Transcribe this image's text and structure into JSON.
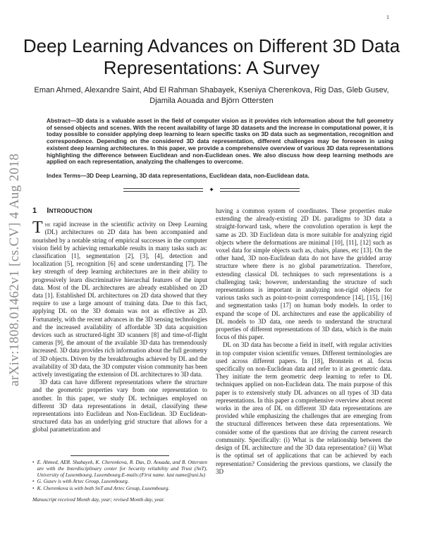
{
  "page": {
    "number": "1",
    "watermark": "arXiv:1808.01462v1  [cs.CV]  4 Aug 2018"
  },
  "title": {
    "line1": "Deep Learning Advances on Different 3D Data",
    "line2": "Representations: A Survey"
  },
  "authors": {
    "line1": "Eman Ahmed, Alexandre Saint, Abd El Rahman Shabayek, Kseniya Cherenkova, Rig Das, Gleb Gusev,",
    "line2": "Djamila Aouada and Björn Ottersten"
  },
  "abstract": {
    "label": "Abstract",
    "body": "—3D data is a valuable asset in the field of computer vision as it provides rich information about the full geometry of sensed objects and scenes. With the recent availability of large 3D datasets and the increase in computational power, it is today possible to consider applying deep learning to learn specific tasks on 3D data such as segmentation, recognition and correspondence. Depending on the considered 3D data representation, different challenges may be foreseen in using existent deep learning architectures. In this paper, we provide a comprehensive overview of various 3D data representations highlighting the difference between Euclidean and non-Euclidean ones. We also discuss how deep learning methods are applied on each representation, analyzing the challenges to overcome."
  },
  "index_terms": {
    "label": "Index Terms",
    "body": "—3D Deep Learning, 3D data representations, Euclidean data, non-Euclidean data."
  },
  "separator": {
    "diamond": "✦"
  },
  "section1": {
    "number": "1",
    "title": "Introduction"
  },
  "left_column": {
    "dropcap": "T",
    "p1_smallcaps": "he",
    "p1": " rapid increase in the scientific activity on Deep Learning (DL) architectures on 2D data has been accompanied and nourished by a notable string of empirical successes in the computer vision field by achieving remarkable results in many tasks such as: classification [1], segmentation [2], [3], [4], detection and localization [5], recognition [6] and scene understanding [7]. The key strength of deep learning architectures are in their ability to progressively learn discriminative hierarchal features of the input data. Most of the DL architectures are already established on 2D data [1]. Established DL architectures on 2D data showed that they require to use a large amount of training data. Due to this fact, applying DL on the 3D domain was not as effective as 2D. Fortunately, with the recent advances in the 3D sensing technologies and the increased availability of affordable 3D data acquisition devices such as structured-light 3D scanners [8] and time-of-flight cameras [9], the amount of the available 3D data has tremendously increased. 3D data provides rich information about the full geometry of 3D objects. Driven by the breakthroughs achieved by DL and the availability of 3D data, the 3D computer vision community has been actively investigating the extension of DL architectures to 3D data.",
    "p2": "3D data can have different representations where the structure and the geometric properties vary from one representation to another. In this paper, we study DL techniques employed on different 3D data representations in detail, classifying these representations into Euclidean and Non-Euclidean. 3D Euclidean-structured data has an underlying grid structure that allows for a global parametrization and"
  },
  "right_column": {
    "p1": "having a common system of coordinates. These properties make extending the already-existing 2D DL paradigms to 3D data a straight-forward task, where the convolution operation is kept the same as 2D. 3D Euclidean data is more suitable for analyzing rigid objects where the deformations are minimal [10], [11], [12] such as voxel data for simple objects such as, chairs, planes, etc [13]. On the other hand, 3D non-Euclidean data do not have the gridded array structure where there is no global parametrization. Therefore, extending classical DL techniques to such representations is a challenging task; however, understanding the structure of such representations is important in analyzing non-rigid objects for various tasks such as point-to-point correspondence [14], [15], [16] and segmentation tasks [17] on human body models. In order to expand the scope of DL architectures and ease the applicability of DL models to 3D data, one needs to understand the structural properties of different representations of 3D data, which is the main focus of this paper.",
    "p2": "DL on 3D data has become a field in itself, with regular activities in top computer vision scientific venues. Different terminologies are used across different papers. In [18], Bronstein et al. focus specifically on non-Euclidean data and refer to it as geometric data. They initiate the term geometric deep learning to refer to DL techniques applied on non-Euclidean data. The main purpose of this paper is to extensively study DL advances on all types of 3D data representations. In this paper a comprehensive overview about recent works in the area of DL on different 3D data representations are provided while emphasizing the challenges that are emerging from the structural differences between these data representations. We consider some of the questions that are driving the current research community. Specifically: (i) What is the relationship between the design of DL architecture and the 3D data representation? (ii) What is the optimal set of applications that can be achieved by each representation? Considering the previous questions, we classify the 3D"
  },
  "footnotes": {
    "bullet": "•",
    "items": [
      {
        "text": "E. Ahmed, AER. Shabayek, K. Cherenkova, R. Das, D. Aouada, and B. Ottersten are with the Interdisciplinary center for Security reliability and Trust (SnT), University of Luxembourg, Luxembourg.E-mails:(First name. last name@uni.lu)"
      },
      {
        "text": "G. Gusev is with Artec Group, Luxembourg."
      },
      {
        "text": "K. Cherenkova is with both SnT and Artec Group, Luxembourg."
      }
    ],
    "manuscript": "Manuscript received Month day, year; revised Month day, year."
  }
}
